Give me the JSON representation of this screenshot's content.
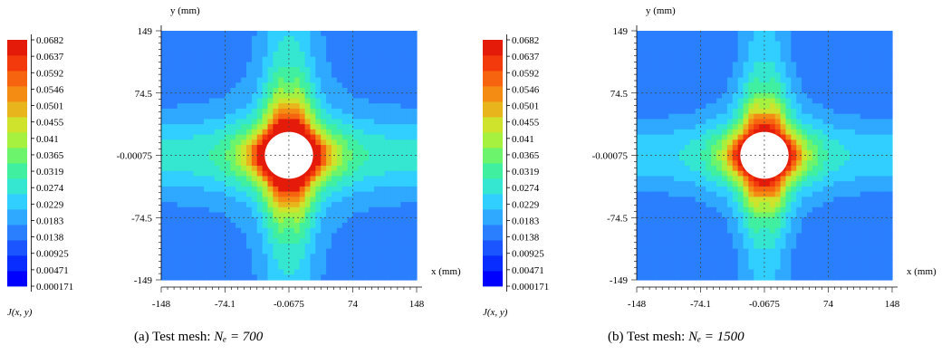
{
  "chart_data": [
    {
      "type": "heatmap",
      "panel": "a",
      "caption_prefix": "(a)  Test mesh: ",
      "caption_math": "Nₑ = 700",
      "xlabel": "x (mm)",
      "ylabel": "y (mm)",
      "colorbar_label": "J(x, y)",
      "x_ticks": [
        "-148",
        "-74.1",
        "-0.0675",
        "74",
        "148"
      ],
      "y_ticks": [
        "149",
        "74.5",
        "-0.00075",
        "-74.5",
        "-149"
      ],
      "xlim": [
        -148,
        148
      ],
      "ylim": [
        -149,
        149
      ],
      "colorbar_ticks": [
        "0.0682",
        "0.0637",
        "0.0592",
        "0.0546",
        "0.0501",
        "0.0455",
        "0.041",
        "0.0365",
        "0.0319",
        "0.0274",
        "0.0229",
        "0.0183",
        "0.0138",
        "0.00925",
        "0.00471",
        "0.000171"
      ],
      "value_range": [
        0.000171,
        0.0682
      ],
      "peak_level": 1.0,
      "hole_radius_mm": 28,
      "grid": true
    },
    {
      "type": "heatmap",
      "panel": "b",
      "caption_prefix": "(b)  Test mesh: ",
      "caption_math": "Nₑ = 1500",
      "xlabel": "x (mm)",
      "ylabel": "y (mm)",
      "colorbar_label": "J(x, y)",
      "x_ticks": [
        "-148",
        "-74.1",
        "-0.0675",
        "74",
        "148"
      ],
      "y_ticks": [
        "149",
        "74.5",
        "-0.00075",
        "-74.5",
        "-149"
      ],
      "xlim": [
        -148,
        148
      ],
      "ylim": [
        -149,
        149
      ],
      "colorbar_ticks": [
        "0.0682",
        "0.0637",
        "0.0592",
        "0.0546",
        "0.0501",
        "0.0455",
        "0.041",
        "0.0365",
        "0.0319",
        "0.0274",
        "0.0229",
        "0.0183",
        "0.0138",
        "0.00925",
        "0.00471",
        "0.000171"
      ],
      "value_range": [
        0.000171,
        0.0682
      ],
      "peak_level": 0.88,
      "hole_radius_mm": 28,
      "grid": true
    }
  ],
  "colormap": [
    "#0000ff",
    "#0a2dff",
    "#1a55ff",
    "#2a7fff",
    "#2fa8ff",
    "#30cfff",
    "#35e6d0",
    "#40f0a0",
    "#6cf56c",
    "#a6f040",
    "#cfe22c",
    "#e9b51c",
    "#f48c14",
    "#f7640f",
    "#f33a0c",
    "#e51b0a"
  ]
}
